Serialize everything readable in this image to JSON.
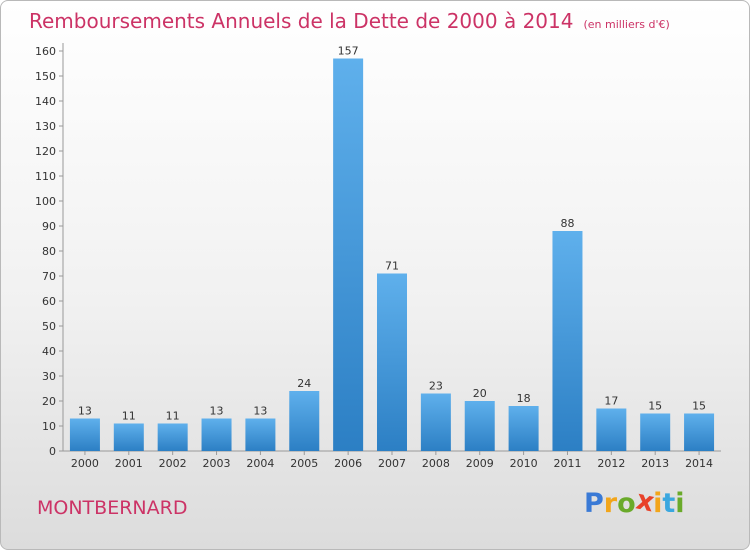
{
  "title": "Remboursements Annuels de la Dette de 2000 à 2014",
  "unit_label": "(en milliers d'€)",
  "location": "MONTBERNARD",
  "logo": {
    "letters": [
      "P",
      "r",
      "o",
      "x",
      "i",
      "t",
      "i"
    ],
    "colors": [
      "#3a7ad6",
      "#f2a51a",
      "#6aaa2a",
      "#e8422a",
      "#f2a51a",
      "#3aa7df",
      "#6aaa2a"
    ]
  },
  "colors": {
    "bar_light": "#5fb0ec",
    "bar_dark": "#2c7fc4",
    "title": "#cc3366"
  },
  "chart_data": {
    "type": "bar",
    "categories": [
      "2000",
      "2001",
      "2002",
      "2003",
      "2004",
      "2005",
      "2006",
      "2007",
      "2008",
      "2009",
      "2010",
      "2011",
      "2012",
      "2013",
      "2014"
    ],
    "values": [
      13,
      11,
      11,
      13,
      13,
      24,
      157,
      71,
      23,
      20,
      18,
      88,
      17,
      15,
      15
    ],
    "ylim": [
      0,
      160
    ],
    "yticks": [
      0,
      10,
      20,
      30,
      40,
      50,
      60,
      70,
      80,
      90,
      100,
      110,
      120,
      130,
      140,
      150,
      160
    ],
    "grid": false
  }
}
